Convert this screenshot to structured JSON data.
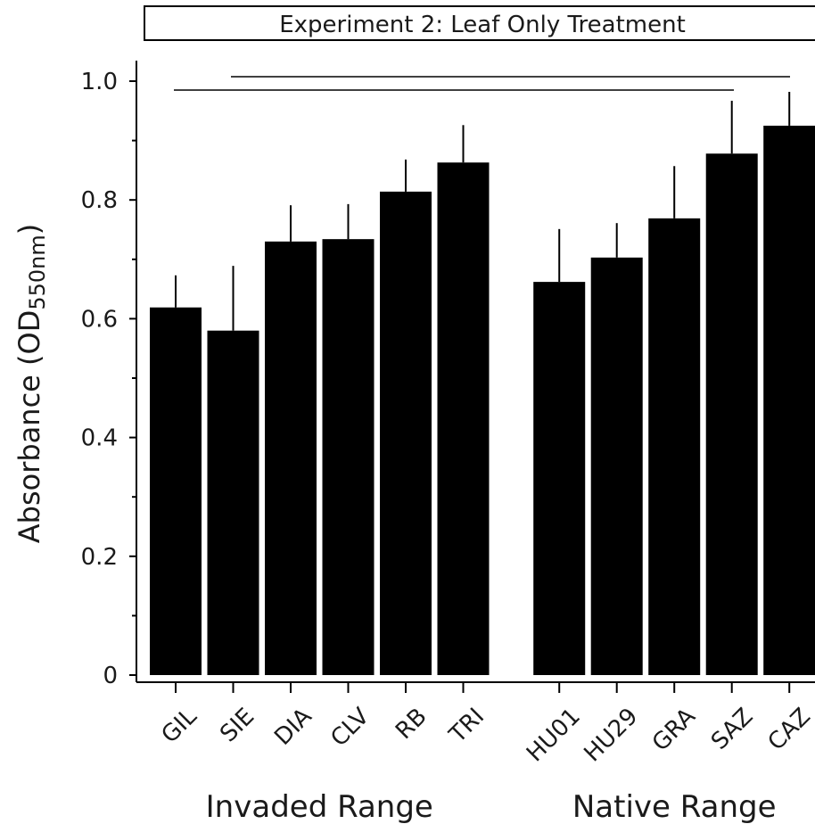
{
  "chart_data": {
    "type": "bar",
    "title": "Experiment 2: Leaf Only Treatment",
    "ylabel": {
      "main": "Absorbance (OD",
      "sub": "550nm",
      "end": ")"
    },
    "color": "#000000",
    "ylim": [
      0,
      1.03
    ],
    "yticks": [
      0,
      0.2,
      0.4,
      0.6,
      0.8,
      {
        "value": 1,
        "label": "1.0"
      }
    ],
    "minor_yticks": [
      0.1,
      0.3,
      0.5,
      0.7,
      0.9
    ],
    "groups": [
      {
        "label": "Invaded Range",
        "categories": [
          "GIL",
          "SIE",
          "DIA",
          "CLV",
          "RB",
          "TRI"
        ],
        "values": [
          0.619,
          0.58,
          0.73,
          0.734,
          0.814,
          0.863
        ],
        "errors": [
          0.054,
          0.109,
          0.061,
          0.059,
          0.054,
          0.063
        ]
      },
      {
        "label": "Native Range",
        "categories": [
          "HU01",
          "HU29",
          "GRA",
          "SAZ",
          "CAZ"
        ],
        "values": [
          0.662,
          0.703,
          0.769,
          0.878,
          0.925
        ],
        "errors": [
          0.089,
          0.058,
          0.088,
          0.089,
          0.057
        ]
      }
    ]
  }
}
